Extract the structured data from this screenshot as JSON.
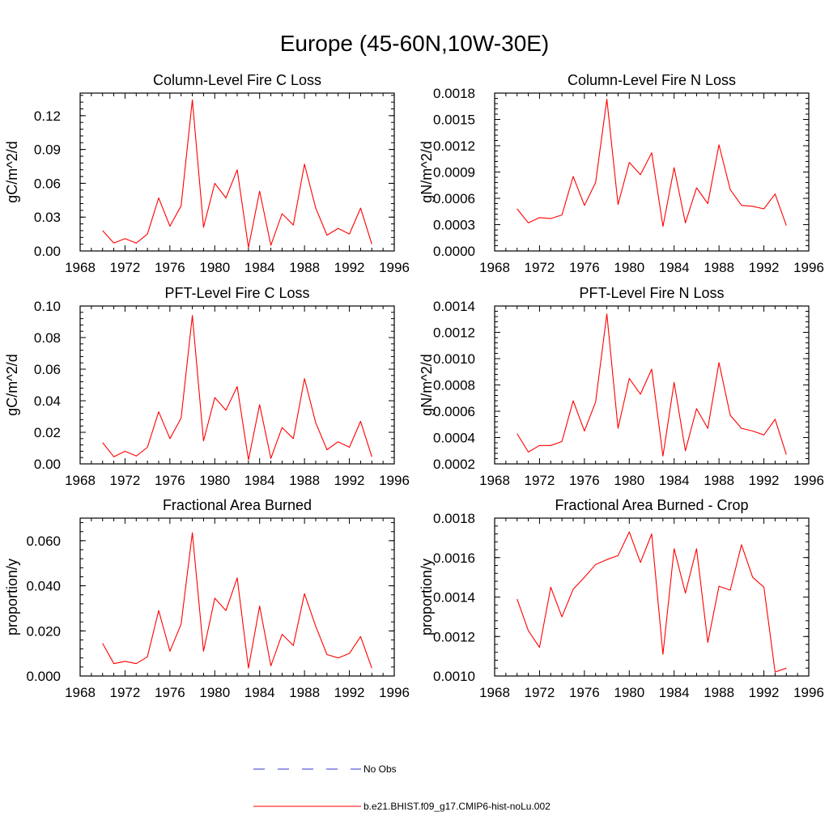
{
  "figure_title": "Europe (45-60N,10W-30E)",
  "colors": {
    "model_line": "#ff0000",
    "obs_line": "#3333cc",
    "axes": "#000000"
  },
  "legend": [
    {
      "label": "No Obs",
      "style": "dashed",
      "color": "#3333cc"
    },
    {
      "label": "b.e21.BHIST.f09_g17.CMIP6-hist-noLu.002",
      "style": "solid",
      "color": "#ff0000"
    }
  ],
  "chart_data": [
    {
      "type": "line",
      "title": "Column-Level Fire C Loss",
      "ylabel": "gC/m^2/d",
      "xlabel": "",
      "xlim": [
        1968,
        1996
      ],
      "xticks": [
        "1968",
        "1972",
        "1976",
        "1980",
        "1984",
        "1988",
        "1992",
        "1996"
      ],
      "ylim": [
        0,
        0.14
      ],
      "yticks": [
        "0.00",
        "0.03",
        "0.06",
        "0.09",
        "0.12"
      ],
      "series": [
        {
          "x": [
            1970,
            1971,
            1972,
            1973,
            1974,
            1975,
            1976,
            1977,
            1978,
            1979,
            1980,
            1981,
            1982,
            1983,
            1984,
            1985,
            1986,
            1987,
            1988,
            1989,
            1990,
            1991,
            1992,
            1993,
            1994
          ],
          "values": [
            0.018,
            0.007,
            0.011,
            0.007,
            0.015,
            0.047,
            0.022,
            0.04,
            0.134,
            0.021,
            0.06,
            0.047,
            0.072,
            0.003,
            0.053,
            0.005,
            0.033,
            0.023,
            0.077,
            0.038,
            0.014,
            0.02,
            0.015,
            0.038,
            0.006
          ]
        }
      ]
    },
    {
      "type": "line",
      "title": "Column-Level Fire N Loss",
      "ylabel": "gN/m^2/d",
      "xlabel": "",
      "xlim": [
        1968,
        1996
      ],
      "xticks": [
        "1968",
        "1972",
        "1976",
        "1980",
        "1984",
        "1988",
        "1992",
        "1996"
      ],
      "ylim": [
        0,
        0.0018
      ],
      "yticks": [
        "0.0000",
        "0.0003",
        "0.0006",
        "0.0009",
        "0.0012",
        "0.0015",
        "0.0018"
      ],
      "series": [
        {
          "x": [
            1970,
            1971,
            1972,
            1973,
            1974,
            1975,
            1976,
            1977,
            1978,
            1979,
            1980,
            1981,
            1982,
            1983,
            1984,
            1985,
            1986,
            1987,
            1988,
            1989,
            1990,
            1991,
            1992,
            1993,
            1994
          ],
          "values": [
            0.00048,
            0.00032,
            0.00038,
            0.00037,
            0.00041,
            0.00085,
            0.00052,
            0.00078,
            0.00173,
            0.00053,
            0.00101,
            0.00087,
            0.00112,
            0.00028,
            0.00095,
            0.00032,
            0.00072,
            0.00054,
            0.00121,
            0.0007,
            0.00052,
            0.00051,
            0.00048,
            0.00065,
            0.00029
          ]
        }
      ]
    },
    {
      "type": "line",
      "title": "PFT-Level Fire C Loss",
      "ylabel": "gC/m^2/d",
      "xlabel": "",
      "xlim": [
        1968,
        1996
      ],
      "xticks": [
        "1968",
        "1972",
        "1976",
        "1980",
        "1984",
        "1988",
        "1992",
        "1996"
      ],
      "ylim": [
        0,
        0.1
      ],
      "yticks": [
        "0.00",
        "0.02",
        "0.04",
        "0.06",
        "0.08",
        "0.10"
      ],
      "series": [
        {
          "x": [
            1970,
            1971,
            1972,
            1973,
            1974,
            1975,
            1976,
            1977,
            1978,
            1979,
            1980,
            1981,
            1982,
            1983,
            1984,
            1985,
            1986,
            1987,
            1988,
            1989,
            1990,
            1991,
            1992,
            1993,
            1994
          ],
          "values": [
            0.0135,
            0.0045,
            0.008,
            0.005,
            0.0105,
            0.033,
            0.016,
            0.029,
            0.094,
            0.0145,
            0.042,
            0.034,
            0.049,
            0.0025,
            0.0375,
            0.0035,
            0.023,
            0.016,
            0.054,
            0.026,
            0.009,
            0.014,
            0.0105,
            0.027,
            0.0045
          ]
        }
      ]
    },
    {
      "type": "line",
      "title": "PFT-Level Fire N Loss",
      "ylabel": "gN/m^2/d",
      "xlabel": "",
      "xlim": [
        1968,
        1996
      ],
      "xticks": [
        "1968",
        "1972",
        "1976",
        "1980",
        "1984",
        "1988",
        "1992",
        "1996"
      ],
      "ylim": [
        0.0002,
        0.0014
      ],
      "yticks": [
        "0.0002",
        "0.0004",
        "0.0006",
        "0.0008",
        "0.0010",
        "0.0012",
        "0.0014"
      ],
      "series": [
        {
          "x": [
            1970,
            1971,
            1972,
            1973,
            1974,
            1975,
            1976,
            1977,
            1978,
            1979,
            1980,
            1981,
            1982,
            1983,
            1984,
            1985,
            1986,
            1987,
            1988,
            1989,
            1990,
            1991,
            1992,
            1993,
            1994
          ],
          "values": [
            0.00043,
            0.00029,
            0.00034,
            0.00034,
            0.00037,
            0.00068,
            0.00045,
            0.00067,
            0.00134,
            0.00047,
            0.00085,
            0.00073,
            0.00092,
            0.00026,
            0.00082,
            0.0003,
            0.00062,
            0.00047,
            0.00097,
            0.00057,
            0.00047,
            0.00045,
            0.00042,
            0.00054,
            0.00027
          ]
        }
      ]
    },
    {
      "type": "line",
      "title": "Fractional Area Burned",
      "ylabel": "proportion/y",
      "xlabel": "",
      "xlim": [
        1968,
        1996
      ],
      "xticks": [
        "1968",
        "1972",
        "1976",
        "1980",
        "1984",
        "1988",
        "1992",
        "1996"
      ],
      "ylim": [
        0,
        0.07
      ],
      "yticks": [
        "0.000",
        "0.020",
        "0.040",
        "0.060"
      ],
      "series": [
        {
          "x": [
            1970,
            1971,
            1972,
            1973,
            1974,
            1975,
            1976,
            1977,
            1978,
            1979,
            1980,
            1981,
            1982,
            1983,
            1984,
            1985,
            1986,
            1987,
            1988,
            1989,
            1990,
            1991,
            1992,
            1993,
            1994
          ],
          "values": [
            0.0145,
            0.0055,
            0.0065,
            0.0055,
            0.0085,
            0.029,
            0.011,
            0.023,
            0.0635,
            0.011,
            0.0345,
            0.029,
            0.0435,
            0.0035,
            0.031,
            0.0045,
            0.0185,
            0.0135,
            0.0365,
            0.022,
            0.0095,
            0.008,
            0.01,
            0.0175,
            0.0035
          ]
        }
      ]
    },
    {
      "type": "line",
      "title": "Fractional Area Burned - Crop",
      "ylabel": "proportion/y",
      "xlabel": "",
      "xlim": [
        1968,
        1996
      ],
      "xticks": [
        "1968",
        "1972",
        "1976",
        "1980",
        "1984",
        "1988",
        "1992",
        "1996"
      ],
      "ylim": [
        0.001,
        0.0018
      ],
      "yticks": [
        "0.0010",
        "0.0012",
        "0.0014",
        "0.0016",
        "0.0018"
      ],
      "series": [
        {
          "x": [
            1970,
            1971,
            1972,
            1973,
            1974,
            1975,
            1976,
            1977,
            1978,
            1979,
            1980,
            1981,
            1982,
            1983,
            1984,
            1985,
            1986,
            1987,
            1988,
            1989,
            1990,
            1991,
            1992,
            1993,
            1994
          ],
          "values": [
            0.00139,
            0.00123,
            0.001145,
            0.00145,
            0.0013,
            0.00144,
            0.0015,
            0.001565,
            0.00159,
            0.00161,
            0.00173,
            0.001575,
            0.00172,
            0.00111,
            0.001645,
            0.00142,
            0.001645,
            0.00117,
            0.001455,
            0.001435,
            0.001665,
            0.0015,
            0.00145,
            0.00102,
            0.00104
          ]
        }
      ]
    }
  ]
}
